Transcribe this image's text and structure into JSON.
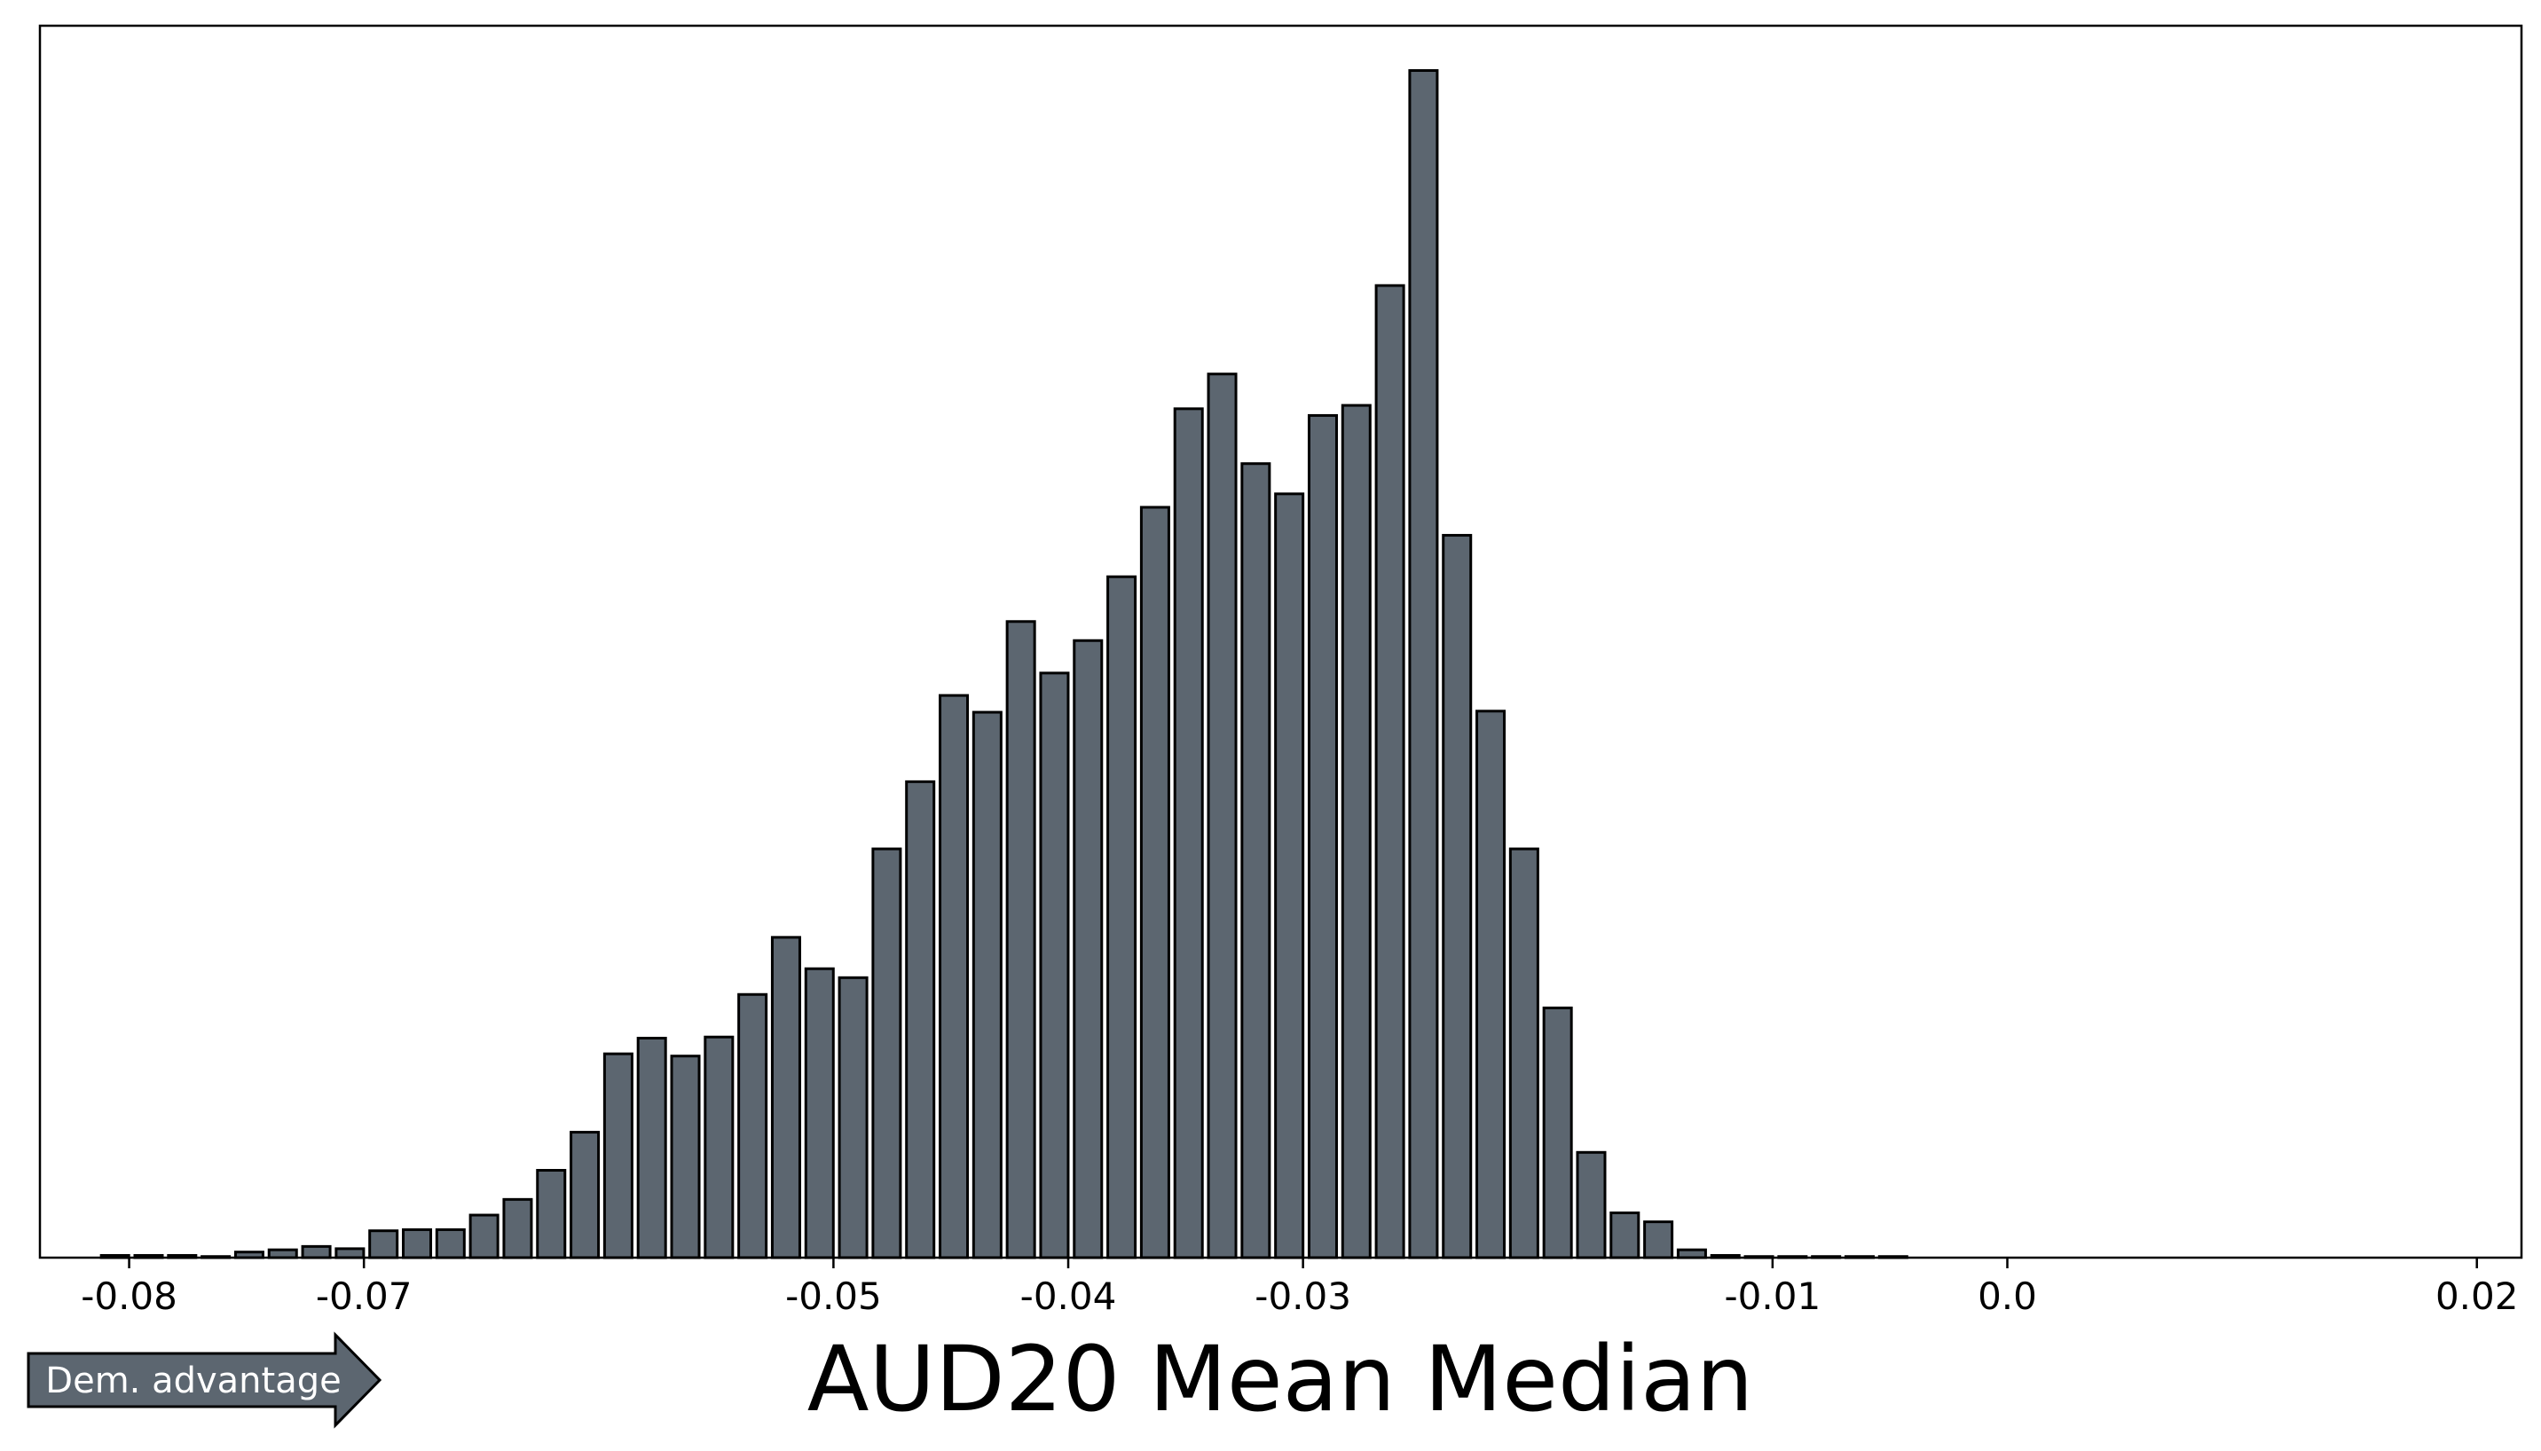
{
  "chart_data": {
    "type": "bar",
    "xlabel": "AUD20 Mean Median",
    "ylabel": "",
    "title": "",
    "grid": false,
    "x_tick_labels": [
      "-0.08",
      "-0.07",
      "-0.05",
      "-0.04",
      "-0.03",
      "-0.01",
      "0.0",
      "0.02"
    ],
    "x_ticks": [
      -0.08,
      -0.07,
      -0.05,
      -0.04,
      -0.03,
      -0.01,
      0.0,
      0.02
    ],
    "xlim": [
      -0.0838,
      0.0219
    ],
    "ylim": [
      0,
      1100
    ],
    "bin_start": -0.0806,
    "bin_width": 0.001429,
    "values": [
      2,
      2,
      2,
      1,
      5,
      7,
      10,
      8,
      24,
      25,
      25,
      38,
      52,
      78,
      112,
      182,
      196,
      180,
      197,
      235,
      286,
      258,
      250,
      365,
      425,
      502,
      487,
      568,
      522,
      551,
      608,
      670,
      758,
      789,
      709,
      682,
      752,
      761,
      868,
      1060,
      645,
      488,
      365,
      223,
      94,
      40,
      32,
      7,
      2,
      1,
      1,
      1,
      1,
      1
    ],
    "color": "#5c6670",
    "edgecolor": "#000000"
  },
  "annotation": {
    "label": "Dem. advantage",
    "color": "#5c6670"
  }
}
